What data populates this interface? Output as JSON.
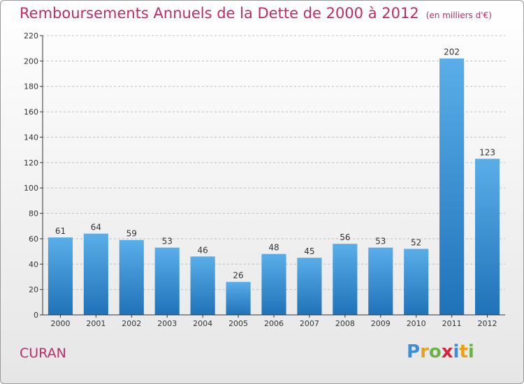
{
  "header": {
    "title": "Remboursements Annuels de la Dette de 2000 à 2012",
    "unit": "(en milliers d'€)"
  },
  "footer": {
    "place": "CURAN",
    "logo": "Proxiti"
  },
  "colors": {
    "title": "#c2296a",
    "bar_top": "#5aaee8",
    "bar_bottom": "#1f72b8",
    "grid": "#bdbdbd",
    "axis": "#333333"
  },
  "chart_data": {
    "type": "bar",
    "title": "Remboursements Annuels de la Dette de 2000 à 2012",
    "subtitle": "(en milliers d'€)",
    "xlabel": "",
    "ylabel": "",
    "categories": [
      "2000",
      "2001",
      "2002",
      "2003",
      "2004",
      "2005",
      "2006",
      "2007",
      "2008",
      "2009",
      "2010",
      "2011",
      "2012"
    ],
    "values": [
      61,
      64,
      59,
      53,
      46,
      26,
      48,
      45,
      56,
      53,
      52,
      202,
      123
    ],
    "ylim": [
      0,
      220
    ],
    "yticks": [
      0,
      20,
      40,
      60,
      80,
      100,
      120,
      140,
      160,
      180,
      200,
      220
    ],
    "grid": true,
    "data_labels": true
  }
}
